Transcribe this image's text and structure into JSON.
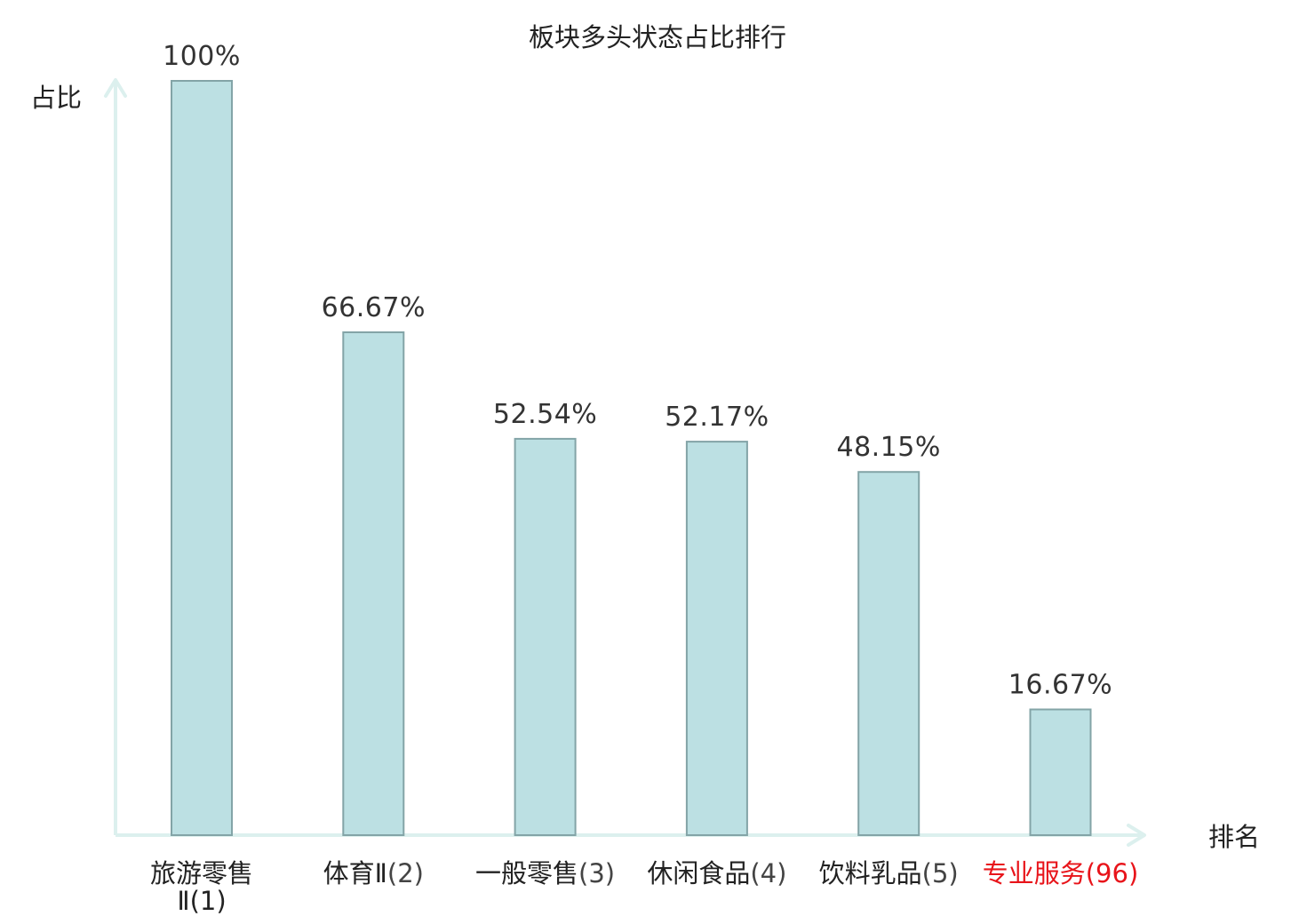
{
  "chart_data": {
    "type": "bar",
    "title": "板块多头状态占比排行",
    "ylabel": "占比",
    "xlabel": "排名",
    "ylim": [
      0,
      100
    ],
    "grid": false,
    "categories": [
      {
        "name": "旅游零售Ⅱ",
        "rank": "(1)",
        "highlight": false
      },
      {
        "name": "体育Ⅱ",
        "rank": "(2)",
        "highlight": false
      },
      {
        "name": "一般零售",
        "rank": "(3)",
        "highlight": false
      },
      {
        "name": "休闲食品",
        "rank": "(4)",
        "highlight": false
      },
      {
        "name": "饮料乳品",
        "rank": "(5)",
        "highlight": false
      },
      {
        "name": "专业服务",
        "rank": "(96)",
        "highlight": true
      }
    ],
    "values": [
      100,
      66.67,
      52.54,
      52.17,
      48.15,
      16.67
    ],
    "value_labels": [
      "100%",
      "66.67%",
      "52.54%",
      "52.17%",
      "48.15%",
      "16.67%"
    ]
  },
  "colors": {
    "bar_fill": "#bce0e3",
    "bar_stroke": "#83a4a7",
    "axis": "#dcf0ee",
    "highlight_text": "#e8141a",
    "normal_text": "#222222",
    "rank_text": "#444444",
    "value_text": "#333333"
  }
}
